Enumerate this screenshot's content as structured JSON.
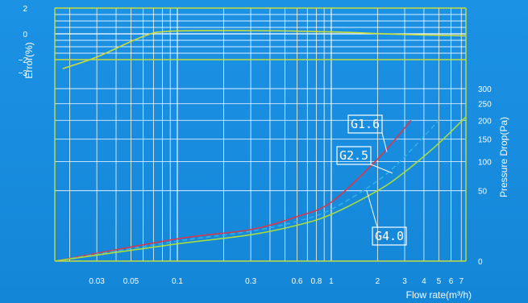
{
  "chart_data": {
    "type": "line",
    "x_scale": "log",
    "xlim": [
      0.016,
      7.5
    ],
    "xlabel": "Flow rate(m³/h)",
    "x_ticks": [
      {
        "v": 0.03,
        "label": "0.03"
      },
      {
        "v": 0.05,
        "label": "0.05"
      },
      {
        "v": 0.1,
        "label": "0.1"
      },
      {
        "v": 0.3,
        "label": "0.3"
      },
      {
        "v": 0.6,
        "label": "0.6"
      },
      {
        "v": 0.8,
        "label": "0.8"
      },
      {
        "v": 1,
        "label": "1"
      },
      {
        "v": 2,
        "label": "2"
      },
      {
        "v": 3,
        "label": "3"
      },
      {
        "v": 4,
        "label": "4"
      },
      {
        "v": 5,
        "label": "5"
      },
      {
        "v": 6,
        "label": "6"
      },
      {
        "v": 7,
        "label": "7"
      }
    ],
    "x_gridlines": [
      0.02,
      0.03,
      0.04,
      0.05,
      0.06,
      0.07,
      0.08,
      0.09,
      0.1,
      0.2,
      0.3,
      0.4,
      0.5,
      0.6,
      0.7,
      0.8,
      0.9,
      1,
      2,
      3,
      4,
      5,
      6,
      7
    ],
    "error_axis": {
      "ylabel": "Error(%)",
      "ylim": [
        -3,
        2
      ],
      "ticks": [
        {
          "v": 2,
          "label": "2"
        },
        {
          "v": 0,
          "label": "0"
        },
        {
          "v": -2,
          "label": "−2"
        },
        {
          "v": -3,
          "label": "−3"
        }
      ],
      "limit_lines": [
        2,
        -2
      ],
      "minor_lines": [
        1.5,
        1,
        0.5,
        -0.5,
        -1,
        -1.5
      ]
    },
    "pressure_axis": {
      "ylabel": "Pressure Drop(Pa)",
      "scale": "sqrt",
      "ylim": [
        0,
        300
      ],
      "ticks": [
        {
          "v": 300,
          "label": "300"
        },
        {
          "v": 250,
          "label": "250"
        },
        {
          "v": 200,
          "label": "200"
        },
        {
          "v": 150,
          "label": "150"
        },
        {
          "v": 100,
          "label": "100"
        },
        {
          "v": 50,
          "label": "50"
        },
        {
          "v": 0,
          "label": "0"
        }
      ]
    },
    "error_series": {
      "color": "#c8dc3c",
      "points": [
        [
          0.018,
          -2.7
        ],
        [
          0.03,
          -1.8
        ],
        [
          0.06,
          -0.2
        ],
        [
          0.09,
          0.2
        ],
        [
          0.3,
          0.25
        ],
        [
          1,
          0.15
        ],
        [
          3,
          -0.05
        ],
        [
          7.5,
          -0.15
        ]
      ]
    },
    "series": [
      {
        "name": "G1.6",
        "color": "#d43a4c",
        "style": "solid",
        "points": [
          [
            0.016,
            0
          ],
          [
            0.1,
            5
          ],
          [
            0.3,
            10
          ],
          [
            0.6,
            20
          ],
          [
            1,
            35
          ],
          [
            2,
            105
          ],
          [
            3.3,
            200
          ]
        ]
      },
      {
        "name": "G2.5",
        "color": "#2fb0e8",
        "style": "dashed",
        "points": [
          [
            0.016,
            0
          ],
          [
            0.1,
            4
          ],
          [
            0.3,
            9
          ],
          [
            0.6,
            16
          ],
          [
            1,
            27
          ],
          [
            2,
            65
          ],
          [
            3,
            110
          ],
          [
            5,
            200
          ]
        ]
      },
      {
        "name": "G4.0",
        "color": "#a8dc40",
        "style": "solid",
        "points": [
          [
            0.016,
            0
          ],
          [
            0.1,
            3
          ],
          [
            0.3,
            7
          ],
          [
            0.6,
            13
          ],
          [
            1,
            22
          ],
          [
            2,
            50
          ],
          [
            3,
            80
          ],
          [
            5,
            140
          ],
          [
            7.5,
            210
          ]
        ]
      }
    ]
  }
}
